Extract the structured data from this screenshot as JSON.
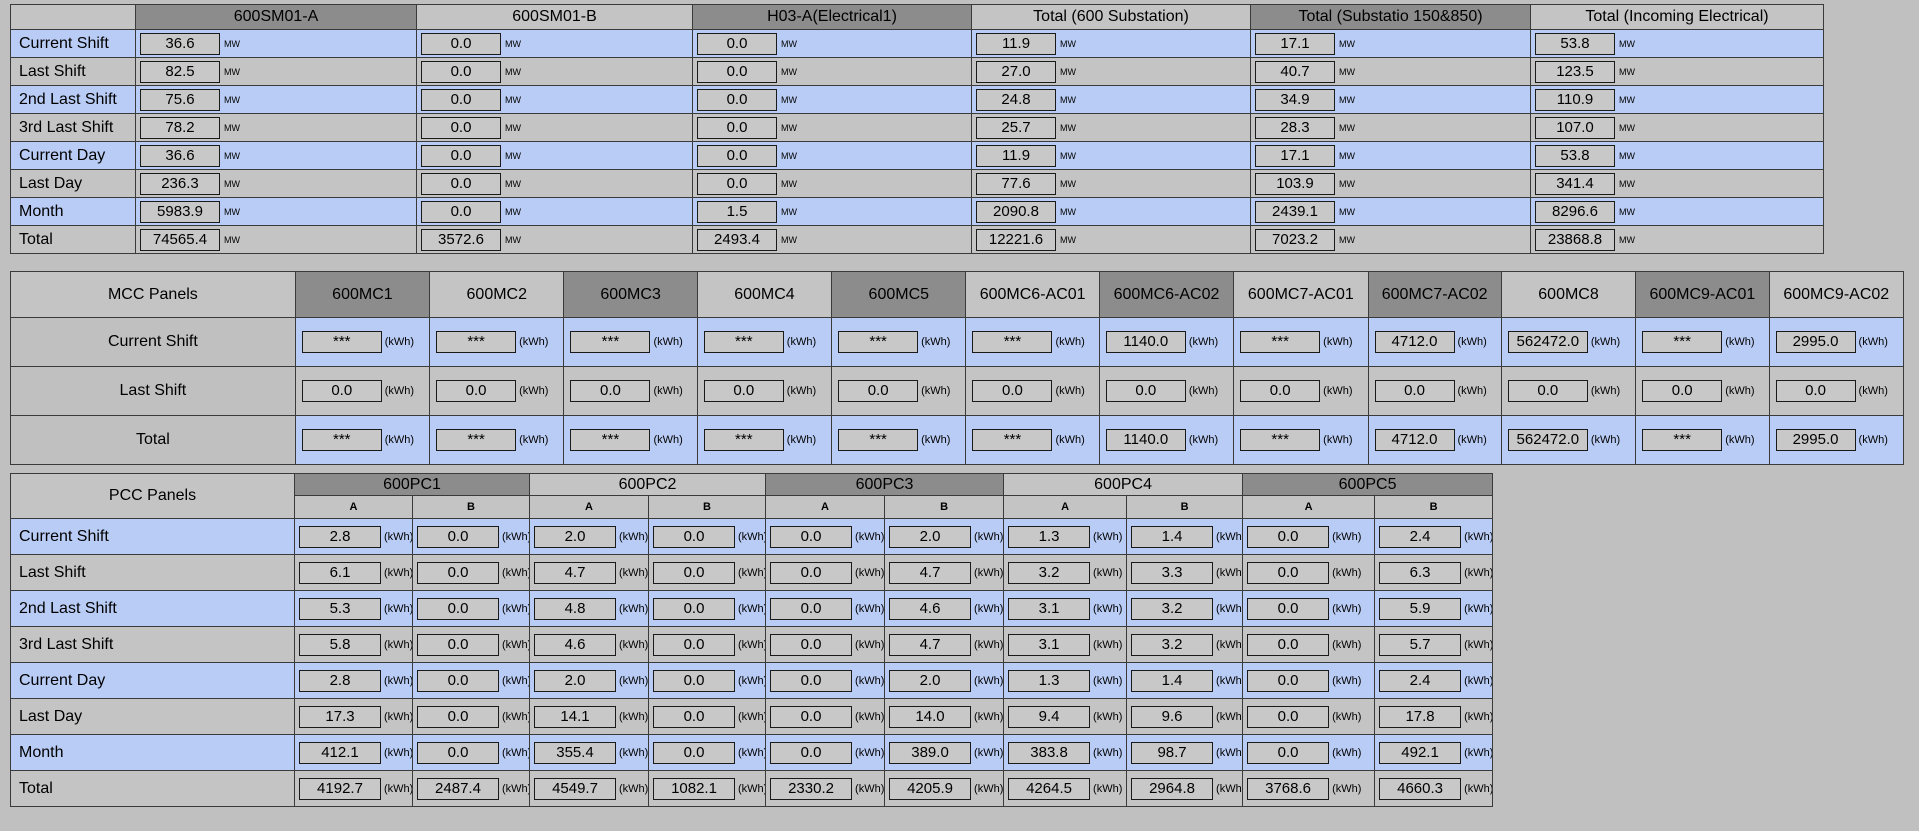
{
  "substation": {
    "columns": [
      "600SM01-A",
      "600SM01-B",
      "H03-A(Electrical1)",
      "Total (600 Substation)",
      "Total (Substatio 150&850)",
      "Total (Incoming Electrical)"
    ],
    "unit": "MW",
    "rows": [
      {
        "label": "Current Shift",
        "values": [
          "36.6",
          "0.0",
          "0.0",
          "11.9",
          "17.1",
          "53.8"
        ]
      },
      {
        "label": "Last Shift",
        "values": [
          "82.5",
          "0.0",
          "0.0",
          "27.0",
          "40.7",
          "123.5"
        ]
      },
      {
        "label": "2nd Last Shift",
        "values": [
          "75.6",
          "0.0",
          "0.0",
          "24.8",
          "34.9",
          "110.9"
        ]
      },
      {
        "label": "3rd Last Shift",
        "values": [
          "78.2",
          "0.0",
          "0.0",
          "25.7",
          "28.3",
          "107.0"
        ]
      },
      {
        "label": "Current Day",
        "values": [
          "36.6",
          "0.0",
          "0.0",
          "11.9",
          "17.1",
          "53.8"
        ]
      },
      {
        "label": "Last Day",
        "values": [
          "236.3",
          "0.0",
          "0.0",
          "77.6",
          "103.9",
          "341.4"
        ]
      },
      {
        "label": "Month",
        "values": [
          "5983.9",
          "0.0",
          "1.5",
          "2090.8",
          "2439.1",
          "8296.6"
        ]
      },
      {
        "label": "Total",
        "values": [
          "74565.4",
          "3572.6",
          "2493.4",
          "12221.6",
          "7023.2",
          "23868.8"
        ]
      }
    ]
  },
  "mcc": {
    "title": "MCC Panels",
    "unit": "(kWh)",
    "columns": [
      "600MC1",
      "600MC2",
      "600MC3",
      "600MC4",
      "600MC5",
      "600MC6-AC01",
      "600MC6-AC02",
      "600MC7-AC01",
      "600MC7-AC02",
      "600MC8",
      "600MC9-AC01",
      "600MC9-AC02"
    ],
    "rows": [
      {
        "label": "Current Shift",
        "values": [
          "***",
          "***",
          "***",
          "***",
          "***",
          "***",
          "1140.0",
          "***",
          "4712.0",
          "562472.0",
          "***",
          "2995.0"
        ]
      },
      {
        "label": "Last Shift",
        "values": [
          "0.0",
          "0.0",
          "0.0",
          "0.0",
          "0.0",
          "0.0",
          "0.0",
          "0.0",
          "0.0",
          "0.0",
          "0.0",
          "0.0"
        ]
      },
      {
        "label": "Total",
        "values": [
          "***",
          "***",
          "***",
          "***",
          "***",
          "***",
          "1140.0",
          "***",
          "4712.0",
          "562472.0",
          "***",
          "2995.0"
        ]
      }
    ]
  },
  "pcc": {
    "title": "PCC Panels",
    "unit": "(kWh)",
    "groups": [
      "600PC1",
      "600PC2",
      "600PC3",
      "600PC4",
      "600PC5"
    ],
    "subcolumns": [
      "A",
      "B"
    ],
    "rows": [
      {
        "label": "Current Shift",
        "values": [
          "2.8",
          "0.0",
          "2.0",
          "0.0",
          "0.0",
          "2.0",
          "1.3",
          "1.4",
          "0.0",
          "2.4"
        ]
      },
      {
        "label": "Last Shift",
        "values": [
          "6.1",
          "0.0",
          "4.7",
          "0.0",
          "0.0",
          "4.7",
          "3.2",
          "3.3",
          "0.0",
          "6.3"
        ]
      },
      {
        "label": "2nd Last Shift",
        "values": [
          "5.3",
          "0.0",
          "4.8",
          "0.0",
          "0.0",
          "4.6",
          "3.1",
          "3.2",
          "0.0",
          "5.9"
        ]
      },
      {
        "label": "3rd Last Shift",
        "values": [
          "5.8",
          "0.0",
          "4.6",
          "0.0",
          "0.0",
          "4.7",
          "3.1",
          "3.2",
          "0.0",
          "5.7"
        ]
      },
      {
        "label": "Current Day",
        "values": [
          "2.8",
          "0.0",
          "2.0",
          "0.0",
          "0.0",
          "2.0",
          "1.3",
          "1.4",
          "0.0",
          "2.4"
        ]
      },
      {
        "label": "Last Day",
        "values": [
          "17.3",
          "0.0",
          "14.1",
          "0.0",
          "0.0",
          "14.0",
          "9.4",
          "9.6",
          "0.0",
          "17.8"
        ]
      },
      {
        "label": "Month",
        "values": [
          "412.1",
          "0.0",
          "355.4",
          "0.0",
          "0.0",
          "389.0",
          "383.8",
          "98.7",
          "0.0",
          "492.1"
        ]
      },
      {
        "label": "Total",
        "values": [
          "4192.7",
          "2487.4",
          "4549.7",
          "1082.1",
          "2330.2",
          "4205.9",
          "4264.5",
          "2964.8",
          "3768.6",
          "4660.3"
        ]
      }
    ]
  }
}
